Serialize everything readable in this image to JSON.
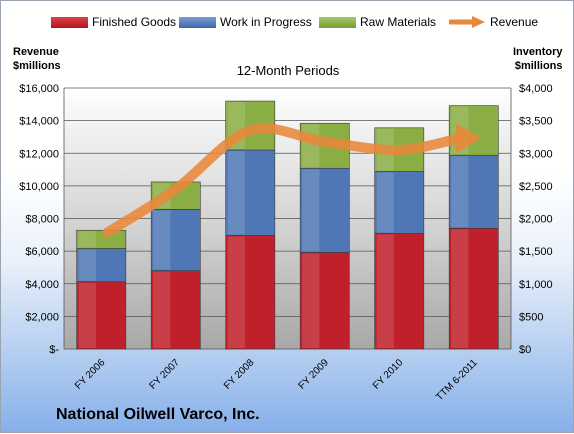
{
  "company_name": "National Oilwell Varco, Inc.",
  "chart_data": {
    "type": "bar",
    "stacked": true,
    "subtitle": "12-Month Periods",
    "left_axis_title": [
      "Revenue",
      "$millions"
    ],
    "right_axis_title": [
      "Inventory",
      "$millions"
    ],
    "categories": [
      "FY 2006",
      "FY 2007",
      "FY 2008",
      "FY 2009",
      "FY 2010",
      "TTM 6-2011"
    ],
    "left_ylim": [
      0,
      16000
    ],
    "right_ylim": [
      0,
      4000
    ],
    "left_ticks": [
      "$-",
      "$2,000",
      "$4,000",
      "$6,000",
      "$8,000",
      "$10,000",
      "$12,000",
      "$14,000",
      "$16,000"
    ],
    "right_ticks": [
      "$0",
      "$500",
      "$1,000",
      "$1,500",
      "$2,000",
      "$2,500",
      "$3,000",
      "$3,500",
      "$4,000"
    ],
    "legend_position": "top",
    "grid": true,
    "series": [
      {
        "name": "Finished Goods",
        "axis": "right",
        "color": "#c0202a",
        "values": [
          1030,
          1200,
          1740,
          1480,
          1770,
          1850
        ]
      },
      {
        "name": "Work in Progress",
        "axis": "right",
        "color": "#4f77b5",
        "values": [
          510,
          940,
          1310,
          1290,
          950,
          1120
        ]
      },
      {
        "name": "Raw Materials",
        "axis": "right",
        "color": "#8aae44",
        "values": [
          280,
          420,
          750,
          690,
          670,
          760
        ]
      },
      {
        "name": "Revenue",
        "type": "line",
        "axis": "left",
        "color": "#e8883a",
        "values": [
          6900,
          9800,
          13400,
          12700,
          12200,
          13100
        ]
      }
    ]
  }
}
